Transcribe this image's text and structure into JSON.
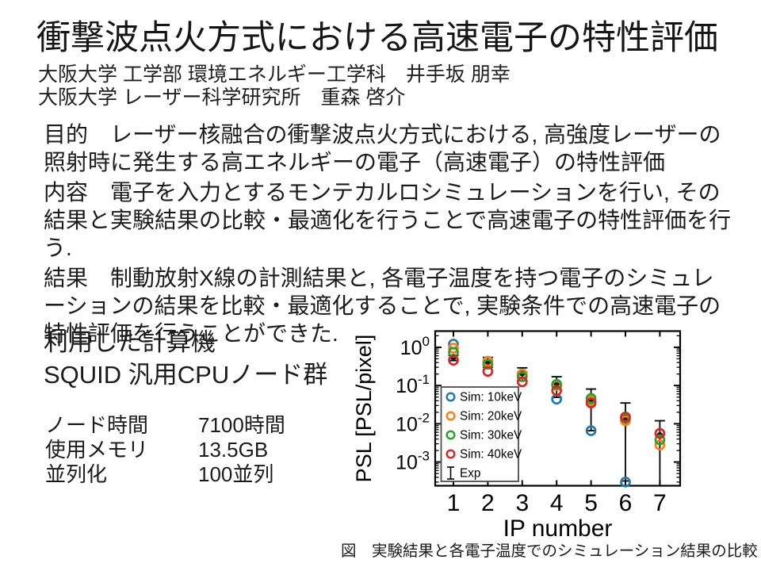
{
  "slide": {
    "title": "衝撃波点火方式における高速電子の特性評価",
    "affiliations": [
      "大阪大学 工学部 環境エネルギー工学科　井手坂 朋幸",
      "大阪大学 レーザー科学研究所　重森 啓介"
    ],
    "paragraphs": [
      "目的　レーザー核融合の衝撃波点火方式における, 高強度レーザーの照射時に発生する高エネルギーの電子（高速電子）の特性評価",
      "内容　電子を入力とするモンテカルロシミュレーションを行い, その結果と実験結果の比較・最適化を行うことで高速電子の特性評価を行う.",
      "結果　制動放射X線の計測結果と, 各電子温度を持つ電子のシミュレーションの結果を比較・最適化することで, 実験条件での高速電子の特性評価を行うことができた."
    ],
    "compute": {
      "heading": "利用した計算機",
      "machine": "SQUID 汎用CPUノード群",
      "stats": [
        {
          "label": "ノード時間",
          "value": "7100時間"
        },
        {
          "label": "使用メモリ",
          "value": "13.5GB"
        },
        {
          "label": "並列化",
          "value": "100並列"
        }
      ]
    },
    "figure_caption": "図　実験結果と各電子温度でのシミュレーション結果の比較"
  },
  "chart_data": {
    "type": "scatter",
    "title": "",
    "xlabel": "IP number",
    "ylabel": "PSL [PSL/pixel]",
    "yscale": "log",
    "xlim": [
      0.47,
      7.59
    ],
    "ylim": [
      0.00024,
      2.65
    ],
    "x": [
      1,
      2,
      3,
      4,
      5,
      6,
      7
    ],
    "y_major_tick_exponents": [
      0,
      -1,
      -2,
      -3
    ],
    "grid": false,
    "legend_position": "lower left",
    "series": [
      {
        "name": "Sim: 10keV",
        "color": "#1f77b4",
        "values": [
          1.21,
          0.43,
          0.2,
          0.044,
          0.0066,
          0.0003,
          null
        ]
      },
      {
        "name": "Sim: 20keV",
        "color": "#ff7f0e",
        "values": [
          0.95,
          0.43,
          0.2,
          0.1,
          0.04,
          0.012,
          0.0028
        ]
      },
      {
        "name": "Sim: 30keV",
        "color": "#2ca02c",
        "values": [
          0.74,
          0.36,
          0.17,
          0.107,
          0.046,
          0.014,
          0.0038
        ]
      },
      {
        "name": "Sim: 40keV",
        "color": "#d62728",
        "values": [
          0.46,
          0.235,
          0.125,
          0.074,
          0.035,
          0.015,
          0.0056
        ]
      }
    ],
    "exp": {
      "name": "Exp",
      "color": "#1a1a1a",
      "center": [
        0.55,
        0.4,
        0.21,
        0.115,
        0.04,
        0.015,
        0.005
      ],
      "hi": [
        0.61,
        0.545,
        0.29,
        0.17,
        0.081,
        0.035,
        0.012
      ],
      "lo": [
        0.45,
        0.3,
        0.135,
        0.049,
        0.0066,
        0.00032,
        0.00024
      ]
    }
  }
}
